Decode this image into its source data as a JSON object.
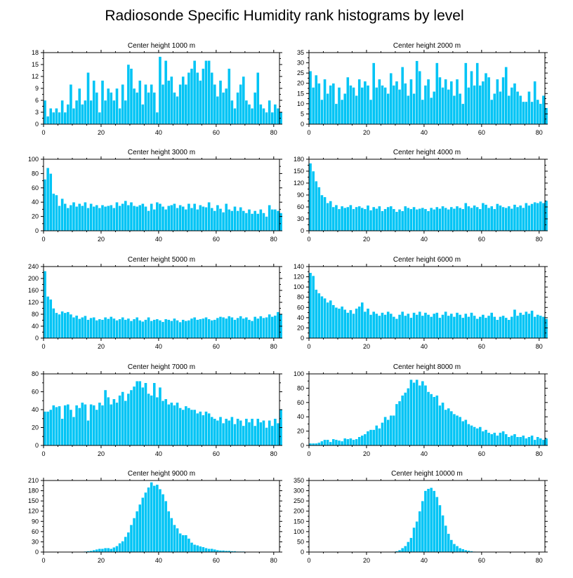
{
  "figure_title": "Radiosonde Specific Humidity rank histograms by level",
  "colors": {
    "bar": "#00c4f5",
    "frame": "#000000",
    "background": "#ffffff"
  },
  "chart_data": [
    {
      "type": "bar",
      "title": "Center height 1000 m",
      "xlim": [
        0,
        82
      ],
      "ylim": [
        0,
        18
      ],
      "xticks": [
        0,
        20,
        40,
        60,
        80
      ],
      "yticks": [
        0,
        3,
        6,
        9,
        12,
        15,
        18
      ],
      "values": [
        6,
        2,
        4,
        3,
        4,
        3,
        6,
        3,
        5,
        10,
        4,
        6,
        9,
        5,
        6,
        13,
        6,
        11,
        8,
        3,
        11,
        6,
        9,
        8,
        6,
        9,
        4,
        10,
        6,
        15,
        14,
        9,
        8,
        11,
        5,
        10,
        8,
        10,
        8,
        3,
        17,
        10,
        16,
        11,
        12,
        8,
        7,
        10,
        12,
        10,
        13,
        14,
        16,
        13,
        11,
        14,
        16,
        16,
        13,
        10,
        7,
        11,
        8,
        9,
        14,
        6,
        4,
        8,
        10,
        12,
        6,
        5,
        4,
        8,
        13,
        5,
        4,
        3,
        6,
        3,
        5,
        4,
        3
      ]
    },
    {
      "type": "bar",
      "title": "Center height 2000 m",
      "xlim": [
        0,
        82
      ],
      "ylim": [
        0,
        35
      ],
      "xticks": [
        0,
        20,
        40,
        60,
        80
      ],
      "yticks": [
        0,
        5,
        10,
        15,
        20,
        25,
        30,
        35
      ],
      "values": [
        26,
        18,
        24,
        20,
        12,
        22,
        15,
        19,
        20,
        10,
        18,
        12,
        15,
        23,
        19,
        18,
        14,
        22,
        18,
        21,
        19,
        12,
        30,
        18,
        22,
        19,
        18,
        15,
        25,
        19,
        21,
        17,
        28,
        20,
        14,
        22,
        15,
        31,
        26,
        12,
        19,
        22,
        13,
        16,
        30,
        23,
        18,
        22,
        17,
        21,
        14,
        22,
        15,
        10,
        30,
        18,
        26,
        19,
        30,
        19,
        21,
        25,
        23,
        12,
        15,
        22,
        16,
        23,
        28,
        14,
        18,
        20,
        16,
        14,
        11,
        11,
        16,
        11,
        21,
        12,
        10,
        14,
        8
      ]
    },
    {
      "type": "bar",
      "title": "Center height 3000 m",
      "xlim": [
        0,
        82
      ],
      "ylim": [
        0,
        100
      ],
      "xticks": [
        0,
        20,
        40,
        60,
        80
      ],
      "yticks": [
        0,
        20,
        40,
        60,
        80,
        100
      ],
      "values": [
        72,
        88,
        80,
        52,
        50,
        35,
        45,
        38,
        32,
        36,
        40,
        34,
        38,
        35,
        40,
        32,
        38,
        34,
        36,
        32,
        36,
        34,
        35,
        36,
        32,
        40,
        35,
        38,
        42,
        36,
        40,
        35,
        34,
        36,
        38,
        34,
        28,
        38,
        30,
        40,
        38,
        34,
        30,
        35,
        36,
        38,
        32,
        36,
        34,
        30,
        38,
        32,
        38,
        30,
        36,
        34,
        33,
        40,
        32,
        28,
        36,
        31,
        26,
        38,
        30,
        28,
        34,
        28,
        33,
        28,
        25,
        30,
        24,
        28,
        24,
        30,
        25,
        20,
        36,
        30,
        30,
        28,
        25
      ]
    },
    {
      "type": "bar",
      "title": "Center height 4000 m",
      "xlim": [
        0,
        82
      ],
      "ylim": [
        0,
        180
      ],
      "xticks": [
        0,
        20,
        40,
        60,
        80
      ],
      "yticks": [
        0,
        30,
        60,
        90,
        120,
        150,
        180
      ],
      "values": [
        170,
        150,
        125,
        110,
        90,
        85,
        70,
        75,
        60,
        65,
        55,
        62,
        58,
        60,
        65,
        55,
        60,
        62,
        58,
        55,
        64,
        52,
        60,
        56,
        62,
        50,
        55,
        60,
        62,
        55,
        48,
        54,
        50,
        62,
        58,
        55,
        60,
        54,
        56,
        58,
        55,
        50,
        58,
        54,
        60,
        56,
        62,
        58,
        54,
        60,
        56,
        62,
        58,
        55,
        70,
        62,
        58,
        64,
        60,
        55,
        70,
        66,
        58,
        62,
        55,
        68,
        64,
        60,
        58,
        62,
        56,
        66,
        60,
        64,
        58,
        70,
        64,
        68,
        72,
        70,
        74,
        70,
        76
      ]
    },
    {
      "type": "bar",
      "title": "Center height 5000 m",
      "xlim": [
        0,
        82
      ],
      "ylim": [
        0,
        240
      ],
      "xticks": [
        0,
        20,
        40,
        60,
        80
      ],
      "yticks": [
        0,
        40,
        80,
        120,
        160,
        200,
        240
      ],
      "values": [
        225,
        140,
        130,
        100,
        85,
        80,
        90,
        85,
        88,
        80,
        70,
        76,
        65,
        70,
        75,
        62,
        68,
        70,
        60,
        64,
        62,
        70,
        65,
        72,
        66,
        60,
        64,
        70,
        62,
        66,
        58,
        64,
        70,
        60,
        56,
        62,
        70,
        58,
        62,
        64,
        60,
        55,
        64,
        62,
        58,
        66,
        60,
        54,
        62,
        58,
        60,
        66,
        70,
        62,
        64,
        66,
        70,
        64,
        60,
        62,
        68,
        72,
        70,
        66,
        74,
        70,
        62,
        68,
        74,
        66,
        70,
        62,
        58,
        72,
        66,
        74,
        68,
        70,
        80,
        72,
        76,
        88,
        82
      ]
    },
    {
      "type": "bar",
      "title": "Center height 6000 m",
      "xlim": [
        0,
        82
      ],
      "ylim": [
        0,
        140
      ],
      "xticks": [
        0,
        20,
        40,
        60,
        80
      ],
      "yticks": [
        0,
        20,
        40,
        60,
        80,
        100,
        120,
        140
      ],
      "values": [
        128,
        122,
        95,
        88,
        82,
        78,
        70,
        74,
        65,
        60,
        58,
        62,
        56,
        50,
        55,
        48,
        58,
        62,
        70,
        52,
        58,
        46,
        52,
        48,
        44,
        50,
        46,
        52,
        48,
        42,
        38,
        46,
        52,
        44,
        48,
        40,
        50,
        46,
        52,
        44,
        50,
        46,
        42,
        48,
        50,
        40,
        46,
        52,
        44,
        48,
        42,
        50,
        46,
        40,
        48,
        42,
        50,
        44,
        38,
        42,
        46,
        40,
        44,
        50,
        42,
        36,
        42,
        44,
        40,
        36,
        42,
        56,
        44,
        50,
        46,
        52,
        48,
        54,
        42,
        46,
        44,
        42,
        38
      ]
    },
    {
      "type": "bar",
      "title": "Center height 7000 m",
      "xlim": [
        0,
        82
      ],
      "ylim": [
        0,
        80
      ],
      "xticks": [
        0,
        20,
        40,
        60,
        80
      ],
      "yticks": [
        0,
        20,
        40,
        60,
        80
      ],
      "values": [
        38,
        38,
        40,
        45,
        43,
        44,
        30,
        45,
        46,
        40,
        32,
        45,
        42,
        48,
        46,
        28,
        46,
        45,
        40,
        48,
        45,
        62,
        54,
        46,
        52,
        48,
        56,
        60,
        50,
        58,
        62,
        66,
        72,
        72,
        65,
        70,
        58,
        56,
        70,
        54,
        65,
        50,
        52,
        46,
        48,
        45,
        48,
        42,
        40,
        44,
        42,
        40,
        40,
        36,
        38,
        34,
        38,
        36,
        32,
        30,
        28,
        32,
        25,
        30,
        28,
        32,
        24,
        30,
        28,
        22,
        30,
        26,
        30,
        22,
        30,
        26,
        28,
        20,
        28,
        22,
        30,
        25,
        40
      ]
    },
    {
      "type": "bar",
      "title": "Center height 8000 m",
      "xlim": [
        0,
        82
      ],
      "ylim": [
        0,
        100
      ],
      "xticks": [
        0,
        20,
        40,
        60,
        80
      ],
      "yticks": [
        0,
        20,
        40,
        60,
        80,
        100
      ],
      "values": [
        3,
        3,
        3,
        4,
        6,
        8,
        8,
        5,
        9,
        8,
        7,
        6,
        10,
        9,
        10,
        8,
        9,
        12,
        14,
        16,
        20,
        22,
        22,
        28,
        24,
        32,
        40,
        36,
        42,
        42,
        58,
        62,
        70,
        74,
        80,
        92,
        88,
        92,
        84,
        90,
        84,
        75,
        72,
        68,
        70,
        56,
        60,
        50,
        52,
        48,
        44,
        42,
        40,
        34,
        36,
        30,
        28,
        26,
        24,
        26,
        20,
        22,
        18,
        16,
        18,
        14,
        18,
        20,
        16,
        12,
        14,
        16,
        12,
        12,
        14,
        10,
        12,
        14,
        8,
        12,
        10,
        8,
        10
      ]
    },
    {
      "type": "bar",
      "title": "Center height 9000 m",
      "xlim": [
        0,
        82
      ],
      "ylim": [
        0,
        210
      ],
      "xticks": [
        0,
        20,
        40,
        60,
        80
      ],
      "yticks": [
        0,
        30,
        60,
        90,
        120,
        150,
        180,
        210
      ],
      "values": [
        0,
        0,
        0,
        0,
        0,
        0,
        0,
        0,
        0,
        0,
        0,
        0,
        0,
        1,
        2,
        3,
        4,
        6,
        8,
        10,
        10,
        12,
        12,
        10,
        14,
        18,
        26,
        32,
        45,
        58,
        80,
        100,
        120,
        140,
        160,
        175,
        190,
        205,
        195,
        198,
        185,
        170,
        150,
        120,
        100,
        80,
        70,
        55,
        50,
        50,
        40,
        28,
        22,
        20,
        17,
        15,
        12,
        10,
        10,
        8,
        6,
        5,
        5,
        4,
        4,
        3,
        3,
        2,
        2,
        2,
        1,
        1,
        1,
        1,
        0,
        1,
        0,
        0,
        0,
        1,
        0,
        0,
        0
      ]
    },
    {
      "type": "bar",
      "title": "Center height 10000 m",
      "xlim": [
        0,
        82
      ],
      "ylim": [
        0,
        350
      ],
      "xticks": [
        0,
        20,
        40,
        60,
        80
      ],
      "yticks": [
        0,
        50,
        100,
        150,
        200,
        250,
        300,
        350
      ],
      "values": [
        0,
        0,
        0,
        0,
        0,
        0,
        0,
        0,
        0,
        0,
        0,
        0,
        0,
        0,
        0,
        0,
        0,
        0,
        0,
        0,
        0,
        0,
        0,
        0,
        0,
        0,
        0,
        0,
        0,
        2,
        5,
        10,
        20,
        30,
        50,
        70,
        120,
        150,
        200,
        250,
        300,
        310,
        315,
        300,
        270,
        230,
        180,
        130,
        90,
        60,
        40,
        30,
        20,
        15,
        10,
        7,
        5,
        3,
        2,
        2,
        1,
        1,
        0,
        0,
        0,
        0,
        0,
        0,
        0,
        0,
        0,
        0,
        0,
        0,
        0,
        0,
        0,
        0,
        0,
        0,
        0,
        0,
        0
      ]
    }
  ]
}
